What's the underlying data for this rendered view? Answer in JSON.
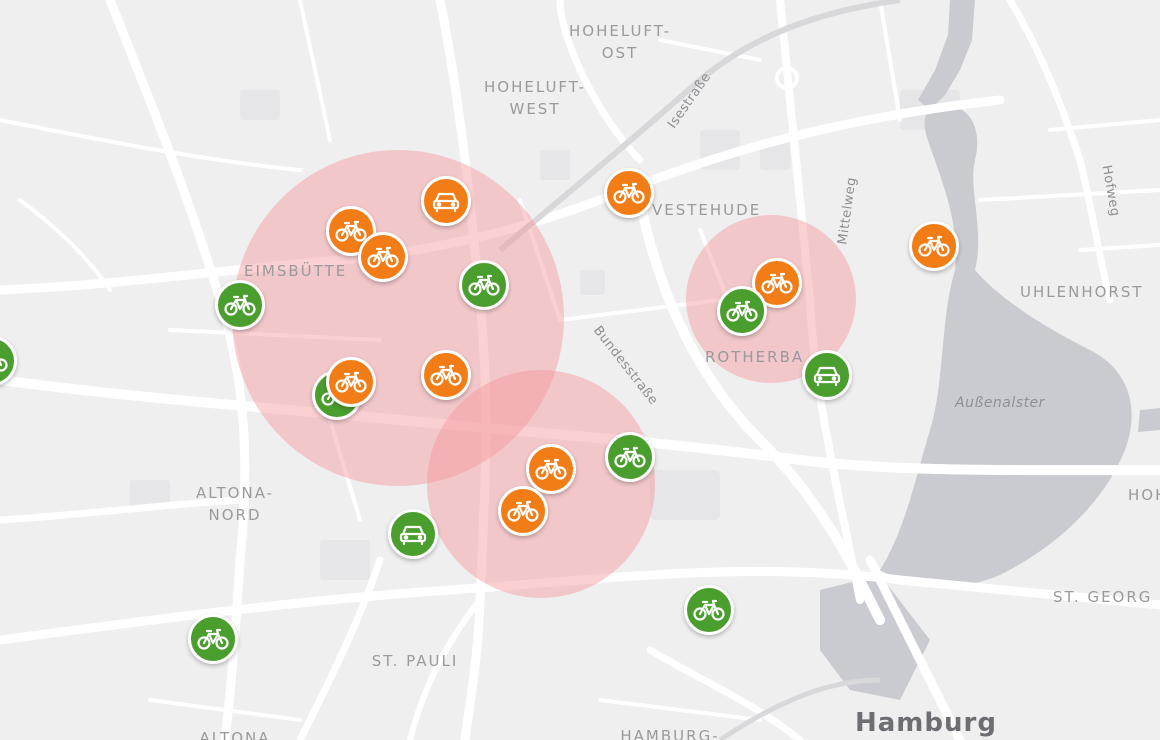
{
  "map": {
    "districts": {
      "hoheluft_ost": "HOHELUFT-\nOST",
      "hoheluft_west": "HOHELUFT-\nWEST",
      "eimsbuettel": "EIMSBÜTTE",
      "harvestehude": "VESTEHUDE",
      "rotherbaum": "ROTHERBA",
      "uhlenhorst": "UHLENHORST",
      "altona_nord": "ALTONA-\nNORD",
      "st_pauli": "ST. PAULI",
      "st_georg": "ST. GEORG",
      "altona": "ALTONA",
      "hamburg_south": "HAMBURG-",
      "hoh_right": "HOH"
    },
    "streets": {
      "isestrasse": "Isestraße",
      "mittelweg": "Mittelweg",
      "hofweg": "Hofweg",
      "bundesstrasse": "Bundesstraße"
    },
    "water": {
      "aussenalster": "Außenalster"
    },
    "city_label": "Hamburg"
  },
  "vehicles": [
    {
      "id": "v1",
      "type": "bike",
      "status": "green",
      "icon": "bicycle-icon"
    },
    {
      "id": "v2",
      "type": "bike",
      "status": "green",
      "icon": "bicycle-icon"
    },
    {
      "id": "v3",
      "type": "bike",
      "status": "orange",
      "icon": "bicycle-icon"
    },
    {
      "id": "v4",
      "type": "bike",
      "status": "orange",
      "icon": "bicycle-icon"
    },
    {
      "id": "v5",
      "type": "car",
      "status": "orange",
      "icon": "car-icon"
    },
    {
      "id": "v6",
      "type": "bike",
      "status": "green",
      "icon": "bicycle-icon"
    },
    {
      "id": "v7",
      "type": "bike",
      "status": "orange",
      "icon": "bicycle-icon"
    },
    {
      "id": "v8",
      "type": "bike",
      "status": "green",
      "icon": "bicycle-icon"
    },
    {
      "id": "v9",
      "type": "bike",
      "status": "orange",
      "icon": "bicycle-icon"
    },
    {
      "id": "v10",
      "type": "bike",
      "status": "orange",
      "icon": "bicycle-icon"
    },
    {
      "id": "v11",
      "type": "bike",
      "status": "orange",
      "icon": "bicycle-icon"
    },
    {
      "id": "v12",
      "type": "bike",
      "status": "orange",
      "icon": "bicycle-icon"
    },
    {
      "id": "v13",
      "type": "bike",
      "status": "green",
      "icon": "bicycle-icon"
    },
    {
      "id": "v14",
      "type": "car",
      "status": "green",
      "icon": "car-icon"
    },
    {
      "id": "v15",
      "type": "bike",
      "status": "green",
      "icon": "bicycle-icon"
    },
    {
      "id": "v16",
      "type": "bike",
      "status": "green",
      "icon": "bicycle-icon"
    },
    {
      "id": "v17",
      "type": "bike",
      "status": "orange",
      "icon": "bicycle-icon"
    },
    {
      "id": "v18",
      "type": "bike",
      "status": "green",
      "icon": "bicycle-icon"
    },
    {
      "id": "v19",
      "type": "car",
      "status": "green",
      "icon": "car-icon"
    },
    {
      "id": "v20",
      "type": "bike",
      "status": "orange",
      "icon": "bicycle-icon"
    }
  ],
  "colors": {
    "green": "#4a9e2d",
    "orange": "#f27d17",
    "zone": "#f5969b",
    "water": "#c9cbd0",
    "land": "#f0eff0",
    "road": "#ffffff"
  }
}
